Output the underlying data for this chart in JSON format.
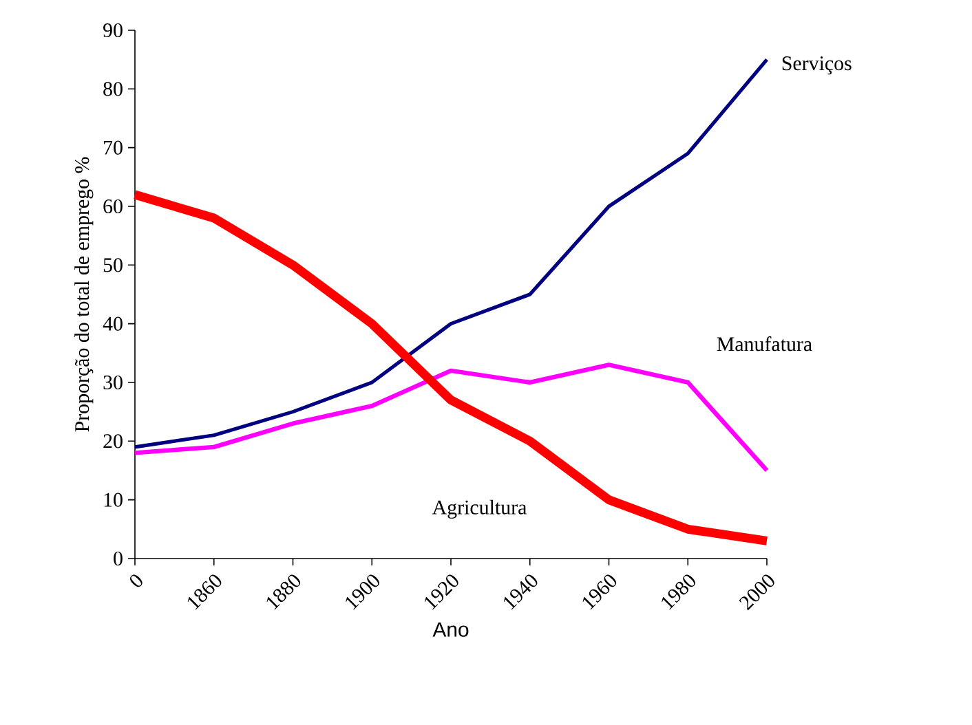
{
  "chart_data": {
    "type": "line",
    "xlabel": "Ano",
    "ylabel": "Proporção do total de emprego %",
    "categories": [
      "0",
      "1860",
      "1880",
      "1900",
      "1920",
      "1940",
      "1960",
      "1980",
      "2000"
    ],
    "ylim": [
      0,
      90
    ],
    "yticks": [
      0,
      10,
      20,
      30,
      40,
      50,
      60,
      70,
      80,
      90
    ],
    "grid": false,
    "legend": false,
    "marker": "none",
    "line_style": "solid",
    "series": [
      {
        "name": "Serviços",
        "color": "#000080",
        "values": [
          19,
          21,
          25,
          30,
          40,
          45,
          60,
          69,
          85
        ]
      },
      {
        "name": "Manufatura",
        "color": "#ff00ff",
        "values": [
          18,
          19,
          23,
          26,
          32,
          30,
          33,
          30,
          15
        ]
      },
      {
        "name": "Agricultura",
        "color": "#ff0000",
        "values": [
          62,
          58,
          50,
          40,
          27,
          20,
          10,
          5,
          3
        ]
      }
    ]
  }
}
